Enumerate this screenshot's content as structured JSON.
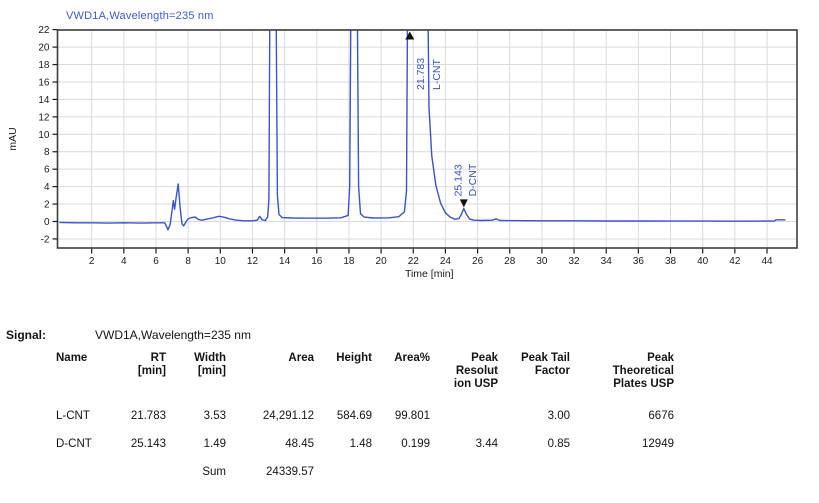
{
  "chart_data": {
    "type": "line",
    "title": "VWD1A,Wavelength=235 nm",
    "xlabel": "Time [min]",
    "ylabel": "mAU",
    "xlim": [
      0,
      45.9
    ],
    "ylim": [
      -3,
      22
    ],
    "grid": true,
    "x_ticks": [
      2,
      4,
      6,
      8,
      10,
      12,
      14,
      16,
      18,
      20,
      22,
      24,
      26,
      28,
      30,
      32,
      34,
      36,
      38,
      40,
      42,
      44
    ],
    "y_ticks": [
      -2,
      0,
      2,
      4,
      6,
      8,
      10,
      12,
      14,
      16,
      18,
      20,
      22
    ],
    "colors": {
      "trace": "#3a53cf",
      "title": "#3c5ad9",
      "grid": "#d7dade",
      "frame": "#3d3d3d",
      "tick_text": "#1b1b1b",
      "marker": "#111111"
    },
    "series": [
      {
        "name": "VWD1A,Wavelength=235 nm",
        "points": [
          [
            0,
            -0.1
          ],
          [
            1,
            -0.15
          ],
          [
            2,
            -0.15
          ],
          [
            3,
            -0.18
          ],
          [
            4,
            -0.15
          ],
          [
            5,
            -0.18
          ],
          [
            6,
            -0.15
          ],
          [
            6.55,
            -0.15
          ],
          [
            6.75,
            -0.95
          ],
          [
            6.88,
            -0.35
          ],
          [
            7.0,
            1.3
          ],
          [
            7.08,
            2.4
          ],
          [
            7.16,
            1.4
          ],
          [
            7.26,
            2.8
          ],
          [
            7.38,
            4.3
          ],
          [
            7.5,
            1.6
          ],
          [
            7.62,
            -0.25
          ],
          [
            7.72,
            -0.5
          ],
          [
            7.85,
            -0.1
          ],
          [
            8.0,
            0.3
          ],
          [
            8.2,
            0.45
          ],
          [
            8.45,
            0.5
          ],
          [
            8.62,
            0.25
          ],
          [
            8.85,
            0.15
          ],
          [
            9.1,
            0.25
          ],
          [
            9.5,
            0.4
          ],
          [
            9.9,
            0.6
          ],
          [
            10.2,
            0.5
          ],
          [
            10.6,
            0.3
          ],
          [
            11.0,
            0.15
          ],
          [
            11.5,
            0.08
          ],
          [
            12.0,
            0.08
          ],
          [
            12.3,
            0.15
          ],
          [
            12.45,
            0.6
          ],
          [
            12.6,
            0.2
          ],
          [
            12.8,
            0.12
          ],
          [
            12.95,
            0.55
          ],
          [
            13.02,
            2.5
          ],
          [
            13.1,
            30
          ],
          [
            13.45,
            30
          ],
          [
            13.55,
            3
          ],
          [
            13.65,
            0.8
          ],
          [
            13.85,
            0.45
          ],
          [
            14.5,
            0.4
          ],
          [
            15.5,
            0.38
          ],
          [
            16.5,
            0.38
          ],
          [
            17.5,
            0.42
          ],
          [
            17.95,
            0.7
          ],
          [
            18.05,
            4
          ],
          [
            18.14,
            30
          ],
          [
            18.5,
            30
          ],
          [
            18.6,
            4
          ],
          [
            18.72,
            0.9
          ],
          [
            18.95,
            0.5
          ],
          [
            19.5,
            0.4
          ],
          [
            20.5,
            0.42
          ],
          [
            21.1,
            0.55
          ],
          [
            21.45,
            1.1
          ],
          [
            21.58,
            3.5
          ],
          [
            21.66,
            30
          ],
          [
            22.88,
            30
          ],
          [
            22.98,
            13
          ],
          [
            23.15,
            7.5
          ],
          [
            23.4,
            4.2
          ],
          [
            23.7,
            2.1
          ],
          [
            24.0,
            1.0
          ],
          [
            24.3,
            0.5
          ],
          [
            24.6,
            0.25
          ],
          [
            24.85,
            0.35
          ],
          [
            25.0,
            0.85
          ],
          [
            25.14,
            1.5
          ],
          [
            25.3,
            0.85
          ],
          [
            25.5,
            0.3
          ],
          [
            25.75,
            0.15
          ],
          [
            26.2,
            0.12
          ],
          [
            26.9,
            0.15
          ],
          [
            27.15,
            0.3
          ],
          [
            27.4,
            0.12
          ],
          [
            28.0,
            0.1
          ],
          [
            30.0,
            0.08
          ],
          [
            32.0,
            0.08
          ],
          [
            34.0,
            0.06
          ],
          [
            36.0,
            0.06
          ],
          [
            38.0,
            0.05
          ],
          [
            40.0,
            0.05
          ],
          [
            42.0,
            0.04
          ],
          [
            44.0,
            0.05
          ],
          [
            44.45,
            0.05
          ],
          [
            44.55,
            0.2
          ],
          [
            45.15,
            0.2
          ]
        ]
      }
    ],
    "peaks": [
      {
        "name": "L-CNT",
        "rt": 21.783,
        "rt_label": "21.783",
        "height_mau": 584.69,
        "offscale": true
      },
      {
        "name": "D-CNT",
        "rt": 25.143,
        "rt_label": "25.143",
        "height_mau": 1.5,
        "offscale": false
      }
    ]
  },
  "table": {
    "signal_label": "Signal:",
    "signal_value": "VWD1A,Wavelength=235 nm",
    "columns": [
      "Name",
      "RT\n[min]",
      "Width\n[min]",
      "Area",
      "Height",
      "Area%",
      "Peak\nResolut\nion USP",
      "Peak Tail\nFactor",
      "Peak\nTheoretical\nPlates USP"
    ],
    "rows": [
      [
        "L-CNT",
        "21.783",
        "3.53",
        "24,291.12",
        "584.69",
        "99.801",
        "",
        "3.00",
        "6676"
      ],
      [
        "D-CNT",
        "25.143",
        "1.49",
        "48.45",
        "1.48",
        "0.199",
        "3.44",
        "0.85",
        "12949"
      ],
      [
        "",
        "",
        "Sum",
        "24339.57",
        "",
        "",
        "",
        "",
        ""
      ]
    ]
  }
}
